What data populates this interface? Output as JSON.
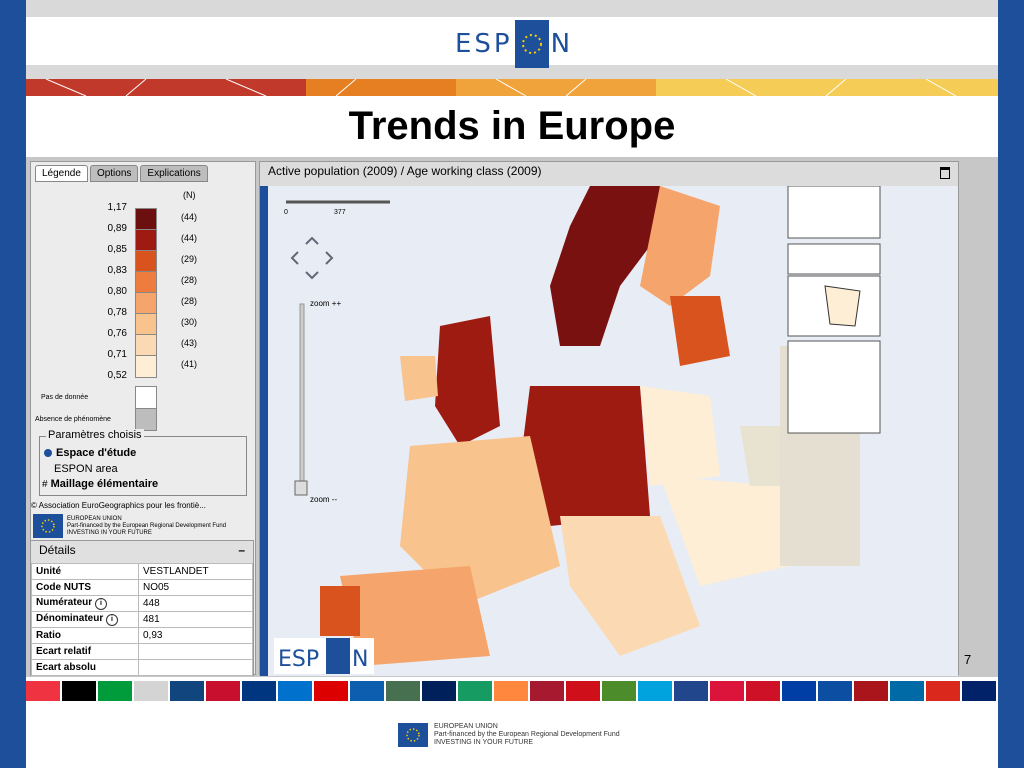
{
  "slide": {
    "title": "Trends in Europe",
    "page_number": "7"
  },
  "header": {
    "logo_left": "ESP",
    "logo_right": "N"
  },
  "panel": {
    "tabs": [
      {
        "label": "Légende"
      },
      {
        "label": "Options"
      },
      {
        "label": "Explications"
      }
    ],
    "legend": {
      "count_header": "(N)",
      "values": [
        "1,17",
        "0,89",
        "0,85",
        "0,83",
        "0,80",
        "0,78",
        "0,76",
        "0,71",
        "0,52"
      ],
      "counts": [
        "(44)",
        "(44)",
        "(29)",
        "(28)",
        "(28)",
        "(30)",
        "(43)",
        "(41)"
      ],
      "colors": [
        "#6b0f0f",
        "#9e1b12",
        "#d9531e",
        "#ef7c3f",
        "#f5a46b",
        "#f8c38d",
        "#fbd9b2",
        "#fdeed5"
      ],
      "no_data_label": "Pas de donnée",
      "no_phenomenon_label": "Absence de phénomène"
    },
    "params": {
      "title": "Paramètres choisis",
      "study_space": "Espace d'étude",
      "espon_area": "ESPON area",
      "maillage": "Maillage élémentaire"
    },
    "copyright": "© Association EuroGeographics  pour les frontiè...",
    "eu_caption": [
      "EUROPEAN UNION",
      "Part-financed by the European Regional Development Fund",
      "INVESTING IN YOUR FUTURE"
    ],
    "details": {
      "title": "Détails",
      "collapse": "–",
      "rows": [
        {
          "label": "Unité",
          "value": "VESTLANDET"
        },
        {
          "label": "Code NUTS",
          "value": "NO05"
        },
        {
          "label": "Numérateur",
          "value": "448"
        },
        {
          "label": "Dénominateur",
          "value": "481"
        },
        {
          "label": "Ratio",
          "value": "0,93"
        },
        {
          "label": "Ecart relatif",
          "value": ""
        },
        {
          "label": "Ecart absolu",
          "value": ""
        }
      ]
    }
  },
  "map": {
    "title": "Active population (2009) / Age working class (2009)",
    "scale_start": "0",
    "scale_mid": "377",
    "zoom_in": "zoom ++",
    "zoom_out": "zoom --",
    "watermark_left": "ESP",
    "watermark_right": "N"
  },
  "footer": {
    "eu_lines": [
      "EUROPEAN UNION",
      "Part-financed by the European Regional Development Fund",
      "INVESTING IN YOUR FUTURE"
    ]
  },
  "flags": [
    "#ef3340",
    "#000000",
    "#009b3a",
    "#d4d4d4",
    "#11457e",
    "#c8102e",
    "#003580",
    "#0072ce",
    "#dd0000",
    "#0d5eaf",
    "#477050",
    "#00205b",
    "#169b62",
    "#ff883e",
    "#a6192e",
    "#cf101a",
    "#4c8c2b",
    "#00a3dd",
    "#21468b",
    "#dc143c",
    "#ce1126",
    "#003da5",
    "#0b4ea2",
    "#aa151b",
    "#006aa7",
    "#da291c",
    "#012169"
  ]
}
